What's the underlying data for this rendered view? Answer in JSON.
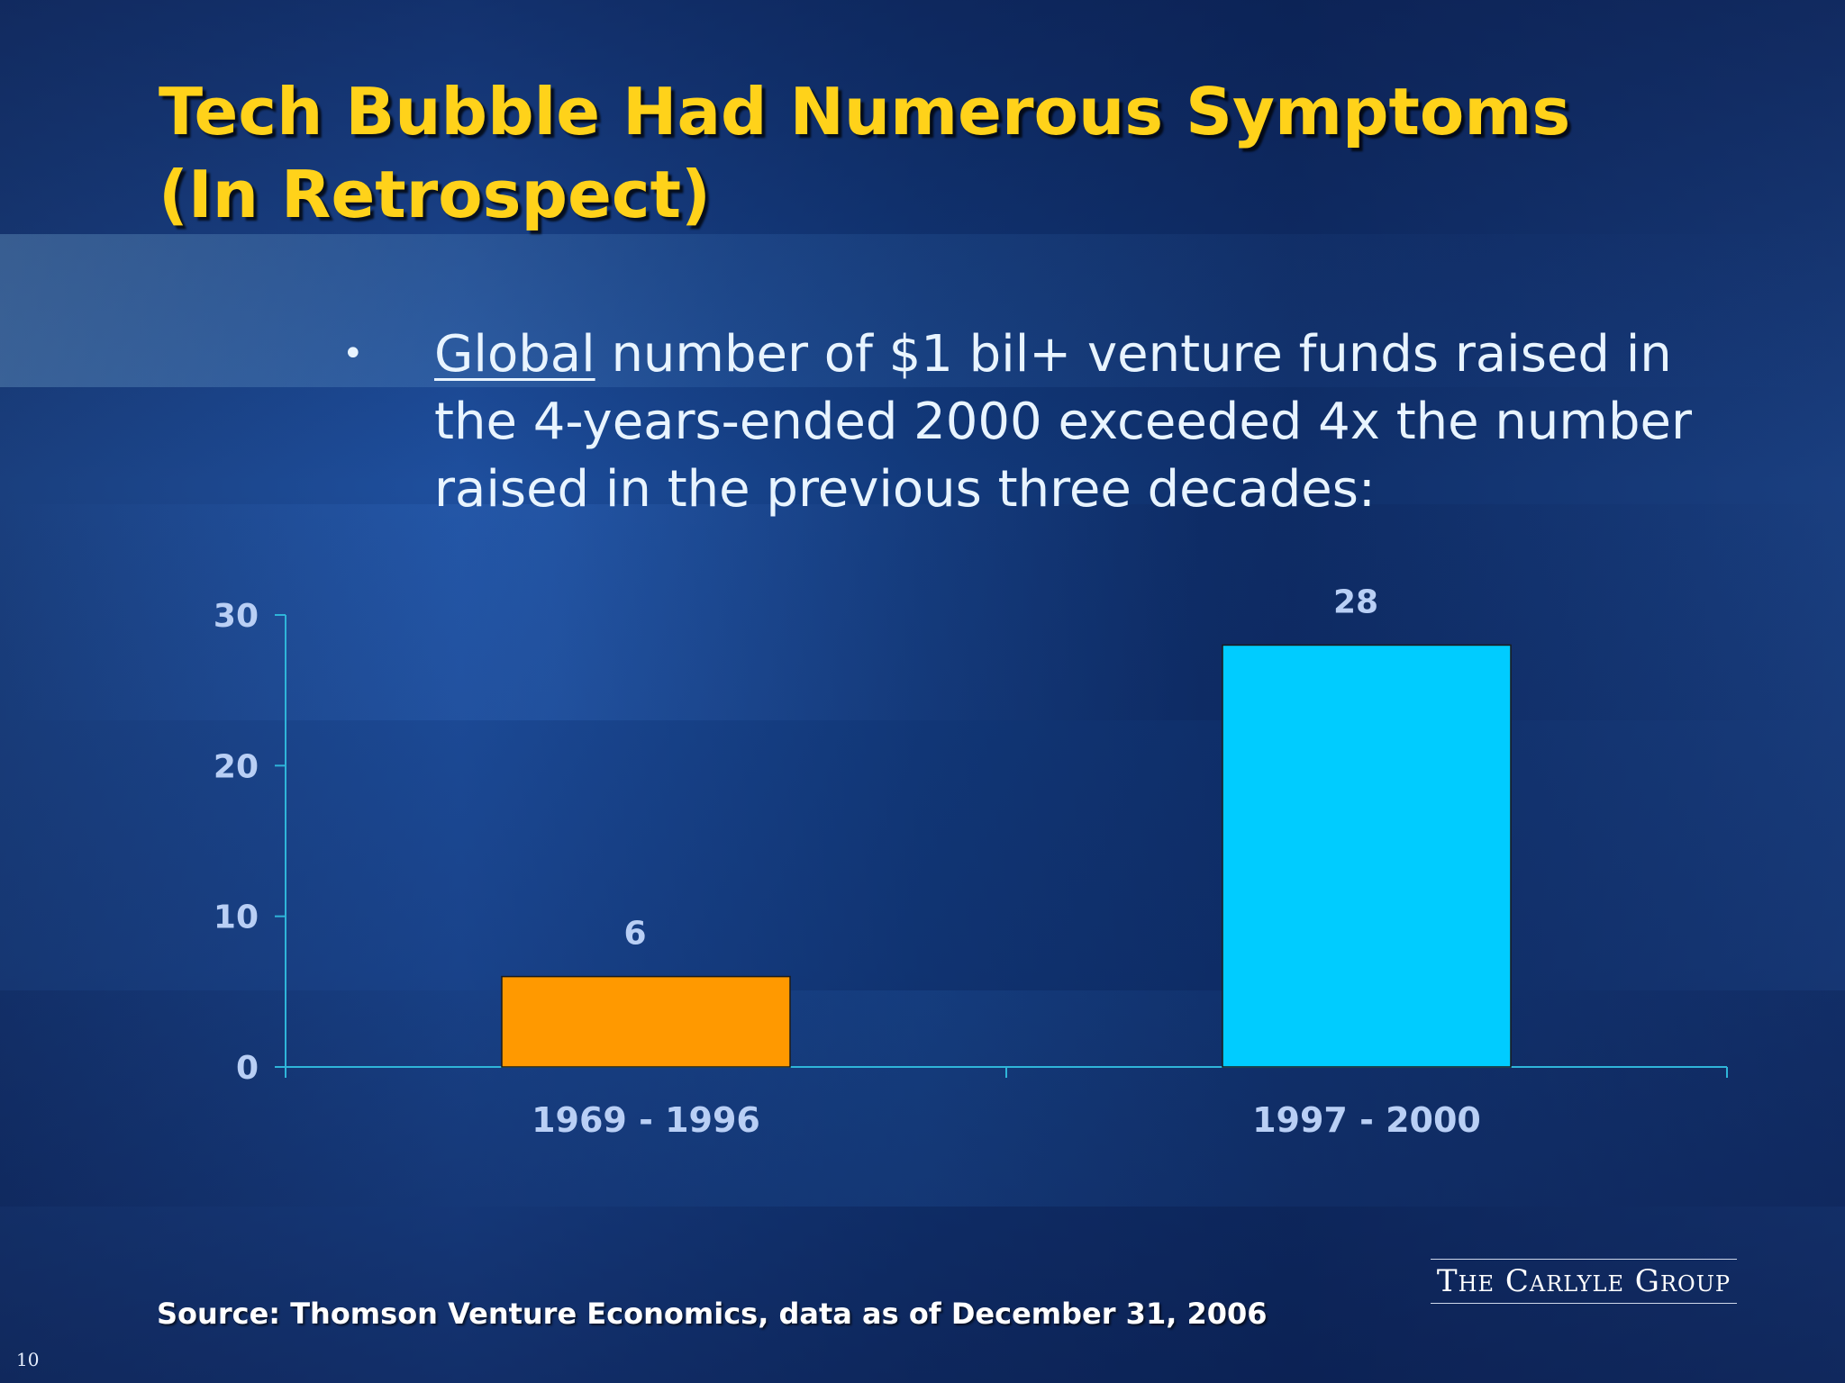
{
  "slide": {
    "title": "Tech Bubble Had Numerous Symptoms (In Retrospect)",
    "bullet": {
      "marker": "•",
      "emphasis": "Global",
      "text": " number of $1 bil+ venture funds raised in the 4-years-ended 2000 exceeded 4x the number raised in the previous three decades:"
    },
    "source": "Source: Thomson Venture Economics, data as of December 31, 2006",
    "logo": "The Carlyle Group",
    "page_number": "10"
  },
  "colors": {
    "title": "#ffd21a",
    "axis": "#2fb5d9",
    "bar_1969_1996": "#ff9900",
    "bar_1997_2000": "#00ccff"
  },
  "chart_data": {
    "type": "bar",
    "categories": [
      "1969 - 1996",
      "1997 - 2000"
    ],
    "values": [
      6,
      28
    ],
    "bar_colors": [
      "#ff9900",
      "#00ccff"
    ],
    "data_labels": [
      "6",
      "28"
    ],
    "ylim": [
      0,
      30
    ],
    "yticks": [
      0,
      10,
      20,
      30
    ],
    "title": "",
    "xlabel": "",
    "ylabel": "",
    "grid": false,
    "legend": "none"
  }
}
